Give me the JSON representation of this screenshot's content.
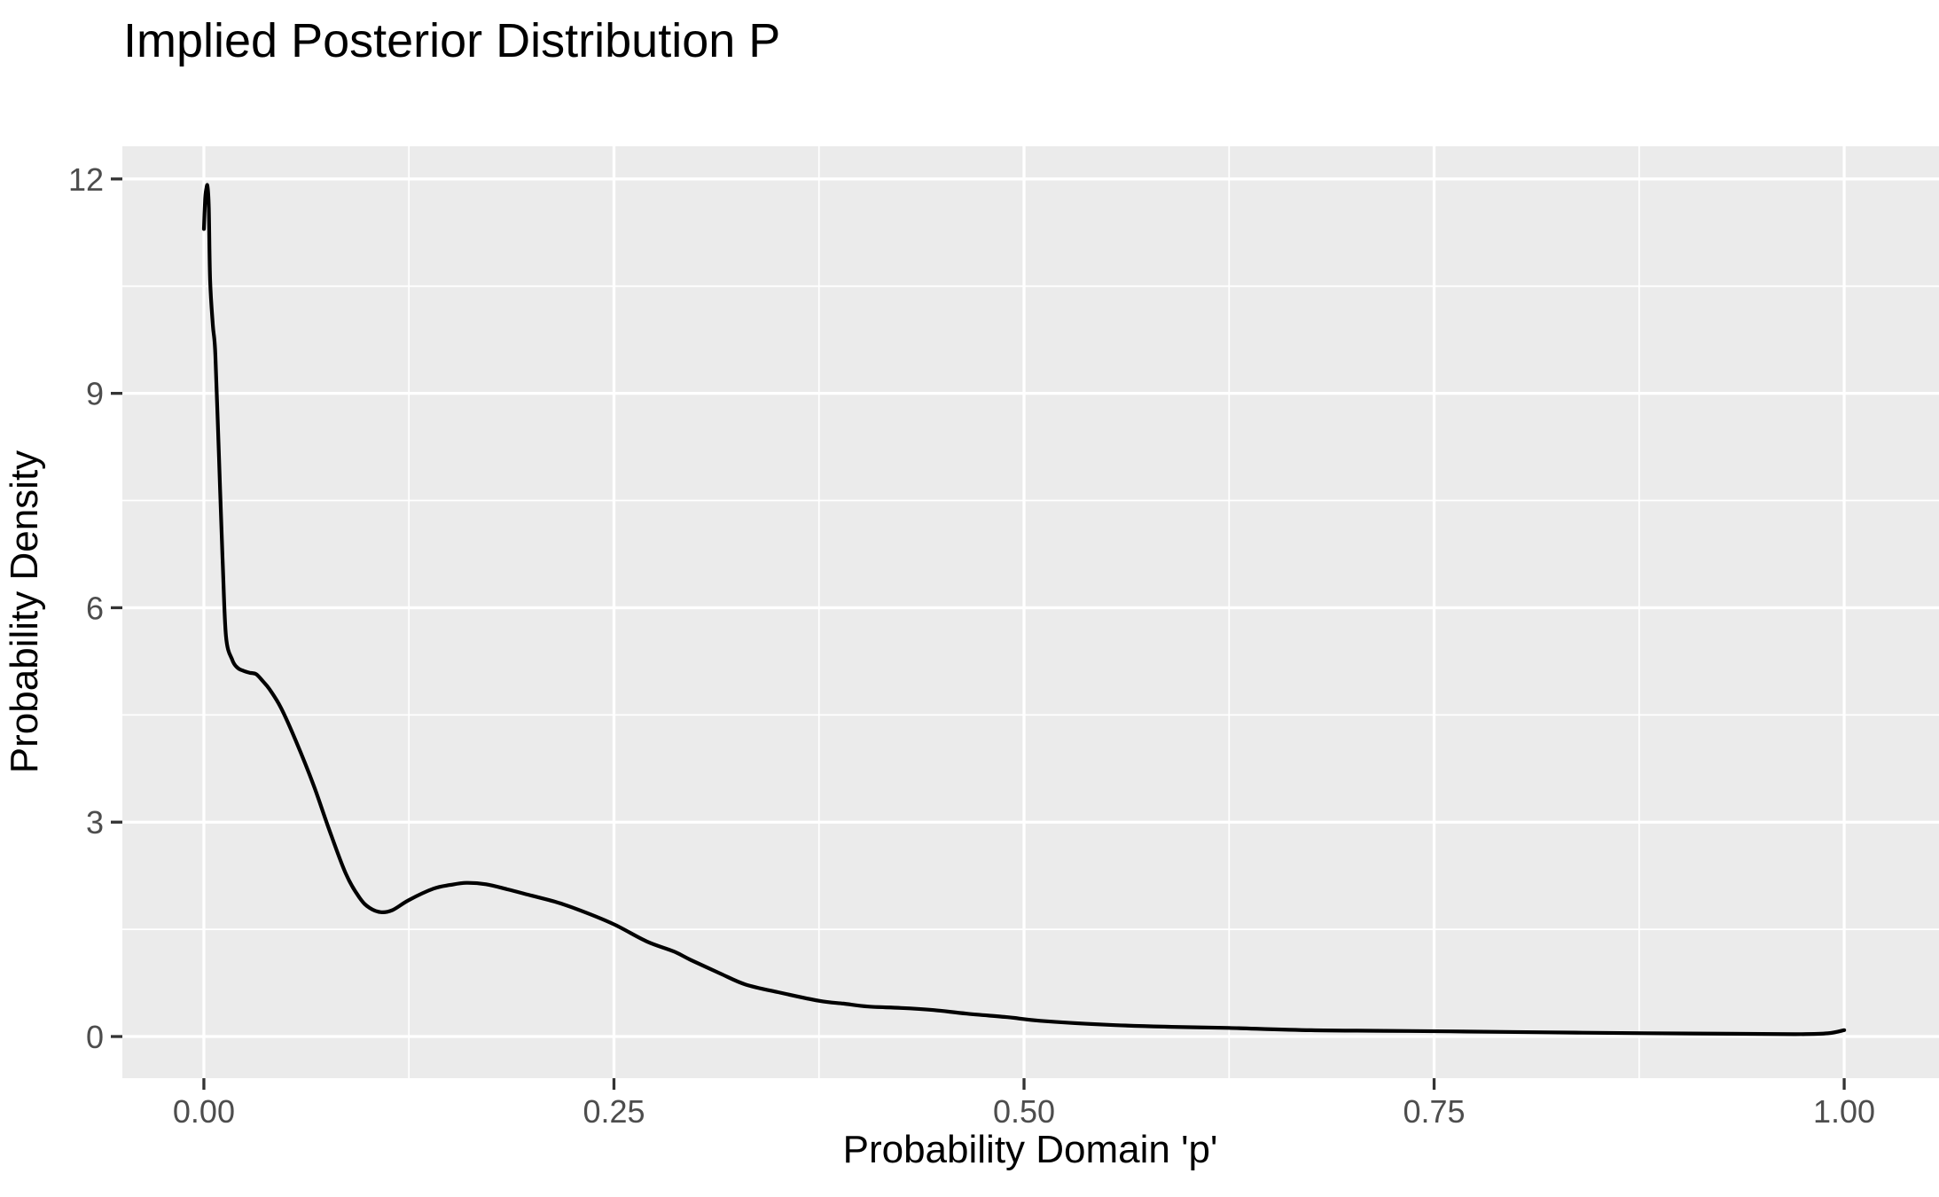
{
  "page": {
    "background_color": "#FFFFFF"
  },
  "chart_data": {
    "type": "line",
    "subtype": "density",
    "title": "Implied Posterior Distribution P",
    "xlabel": "Probability Domain 'p'",
    "ylabel": "Probability Density",
    "legend_position": "none",
    "grid": true,
    "panel_color": "#EBEBEB",
    "grid_color": "#FFFFFF",
    "tick_color": "#333333",
    "tick_label_color": "#4D4D4D",
    "title_color": "#000000",
    "axis_title_color": "#000000",
    "line_color": "#000000",
    "xlim": [
      -0.0497,
      1.0578
    ],
    "ylim": [
      -0.583,
      12.457
    ],
    "x_ticks": {
      "values": [
        0,
        0.25,
        0.5,
        0.75,
        1.0
      ],
      "labels": [
        "0.00",
        "0.25",
        "0.50",
        "0.75",
        "1.00"
      ]
    },
    "y_ticks": {
      "values": [
        0,
        3,
        6,
        9,
        12
      ],
      "labels": [
        "0",
        "3",
        "6",
        "9",
        "12"
      ]
    },
    "x_minor": [
      0.125,
      0.375,
      0.625,
      0.875
    ],
    "y_minor": [
      1.5,
      4.5,
      7.5,
      10.5
    ],
    "series": [
      {
        "name": "posterior_density",
        "color": "#000000",
        "line_width": 4.2,
        "points": [
          [
            0.0,
            11.3
          ],
          [
            0.0008,
            11.72
          ],
          [
            0.0015,
            11.86
          ],
          [
            0.0022,
            11.9
          ],
          [
            0.003,
            11.6
          ],
          [
            0.0038,
            10.58
          ],
          [
            0.0055,
            9.95
          ],
          [
            0.007,
            9.54
          ],
          [
            0.0092,
            8.11
          ],
          [
            0.0114,
            6.69
          ],
          [
            0.0135,
            5.6
          ],
          [
            0.0173,
            5.27
          ],
          [
            0.0205,
            5.16
          ],
          [
            0.0238,
            5.12
          ],
          [
            0.028,
            5.09
          ],
          [
            0.0319,
            5.07
          ],
          [
            0.036,
            4.97
          ],
          [
            0.04,
            4.86
          ],
          [
            0.047,
            4.6
          ],
          [
            0.0562,
            4.13
          ],
          [
            0.067,
            3.51
          ],
          [
            0.0757,
            2.94
          ],
          [
            0.0865,
            2.28
          ],
          [
            0.095,
            1.94
          ],
          [
            0.101,
            1.8
          ],
          [
            0.108,
            1.74
          ],
          [
            0.115,
            1.77
          ],
          [
            0.125,
            1.91
          ],
          [
            0.14,
            2.07
          ],
          [
            0.15,
            2.12
          ],
          [
            0.16,
            2.15
          ],
          [
            0.172,
            2.13
          ],
          [
            0.185,
            2.06
          ],
          [
            0.2,
            1.97
          ],
          [
            0.215,
            1.88
          ],
          [
            0.23,
            1.76
          ],
          [
            0.25,
            1.57
          ],
          [
            0.27,
            1.33
          ],
          [
            0.2865,
            1.19
          ],
          [
            0.297,
            1.07
          ],
          [
            0.315,
            0.88
          ],
          [
            0.33,
            0.73
          ],
          [
            0.35,
            0.62
          ],
          [
            0.375,
            0.5
          ],
          [
            0.39,
            0.46
          ],
          [
            0.405,
            0.42
          ],
          [
            0.425,
            0.4
          ],
          [
            0.445,
            0.37
          ],
          [
            0.465,
            0.32
          ],
          [
            0.49,
            0.27
          ],
          [
            0.51,
            0.22
          ],
          [
            0.55,
            0.165
          ],
          [
            0.59,
            0.135
          ],
          [
            0.625,
            0.12
          ],
          [
            0.675,
            0.088
          ],
          [
            0.72,
            0.08
          ],
          [
            0.76,
            0.072
          ],
          [
            0.82,
            0.058
          ],
          [
            0.88,
            0.046
          ],
          [
            0.93,
            0.038
          ],
          [
            0.97,
            0.032
          ],
          [
            0.99,
            0.045
          ],
          [
            1.0,
            0.09
          ]
        ]
      }
    ]
  }
}
